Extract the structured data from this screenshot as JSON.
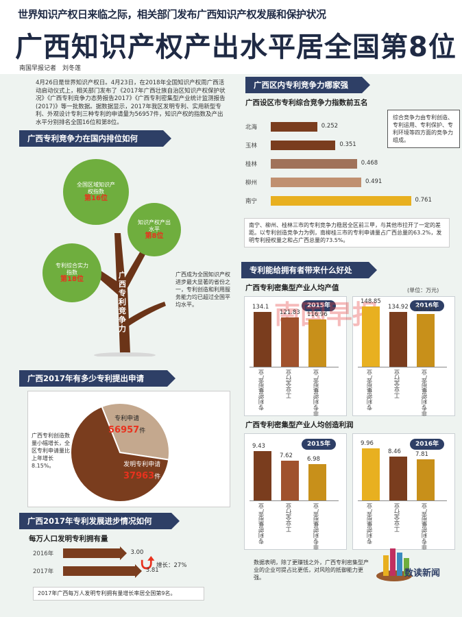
{
  "header": {
    "kicker": "世界知识产权日来临之际，相关部门发布广西知识产权发展和保护状况",
    "headline": "广西知识产权产出水平居全国第8位",
    "byline": "南国早报记者　刘冬莲"
  },
  "intro": "4月26日是世界知识产权日。4月23日，在2018年全国知识产权周广西活动启动仪式上，相关部门发布了《2017年广西壮族自治区知识产权保护状况》《广西专利竞争力态势报告2017》《广西专利密集型产业统计监测报告(2017)》等一批数据。据数据显示，2017年我区发明专利、实用新型专利、外观设计专利三种专利的申请量为56957件，知识产权的指数及产出水平分别排名全国16位和第8位。",
  "tree_section": {
    "banner": "广西专利竞争力在国内排位如何",
    "trunk_label": "广西专利竞争力",
    "bubbles": [
      {
        "label": "全国区域知识产权指数",
        "rank": "第16位"
      },
      {
        "label": "知识产权产出水平",
        "rank": "第8位"
      },
      {
        "label": "专利综合实力指数",
        "rank": "第18位"
      }
    ],
    "note": "广西成为全国知识产权进步最大显著的省份之一，专利创造和利用服务能力均已超过全国平均水平。"
  },
  "city_section": {
    "banner": "广西区内专利竞争力哪家强",
    "subtitle": "广西设区市专利综合竞争力指数前五名",
    "note": "综合竞争力由专利创造、专利运用、专利保护、专利环境等四方面的竞争力组成。",
    "summary": "南宁、柳州、桂林三市的专利竞争力稳居全区前三甲，与其他市拉开了一定的差距。以专利创造竞争力为例，南柳桂三市的专利申请量占广西总量的63.2%，发明专利授权量之和占广西总量的73.5%。"
  },
  "applications_section": {
    "banner": "广西2017年有多少专利提出申请",
    "total_label": "专利申请",
    "total_value": "56957",
    "invent_label": "发明专利申请",
    "invent_value": "37963",
    "unit": "件",
    "note": "广西专利创造数量小幅增长，全区专利申请量比上年增长8.15%。"
  },
  "progress_section": {
    "banner": "广西2017年专利发展进步情况如何",
    "subtitle": "每万人口发明专利拥有量",
    "growth_label": "增长：27%",
    "footnote": "2017年广西每万人发明专利拥有量增长率居全国第9名。"
  },
  "benefit_section": {
    "banner": "专利能给拥有者带来什么好处",
    "chart1_title": "广西专利密集型产业人均产值",
    "chart1_unit": "(单位：万元)",
    "chart2_title": "广西专利密集型产业人均创造利润",
    "year_a": "2015年",
    "year_b": "2016年",
    "conclusion": "数据表明，除了更赚钱之外，广西专利密集型产业的企业可提占比更低，对风险的抵御能力更强。",
    "brand": "数读新闻",
    "watermark": "南国早报"
  },
  "chart_data": [
    {
      "type": "bar",
      "orientation": "horizontal",
      "title": "广西设区市专利综合竞争力指数前五名",
      "categories": [
        "北海",
        "玉林",
        "桂林",
        "柳州",
        "南宁"
      ],
      "values": [
        0.252,
        0.351,
        0.468,
        0.491,
        0.761
      ],
      "colors": [
        "#7a3d1e",
        "#7a3d1e",
        "#a0725a",
        "#c09070",
        "#e8b020"
      ]
    },
    {
      "type": "bar",
      "title": "广西专利密集型产业人均产值",
      "ylabel": "(单位：万元)",
      "categories": [
        "专利密集型产业",
        "工业全行业",
        "非专利密集型产业"
      ],
      "series": [
        {
          "name": "2015年",
          "values": [
            134.1,
            121.83,
            116.96
          ]
        },
        {
          "name": "2016年",
          "values": [
            148.85,
            134.92,
            130.21
          ]
        }
      ]
    },
    {
      "type": "bar",
      "title": "广西专利密集型产业人均创造利润",
      "categories": [
        "专利密集型产业",
        "工业全行业",
        "非专利密集型产业"
      ],
      "series": [
        {
          "name": "2015年",
          "values": [
            9.43,
            7.62,
            6.98
          ]
        },
        {
          "name": "2016年",
          "values": [
            9.96,
            8.46,
            7.81
          ]
        }
      ]
    },
    {
      "type": "pie",
      "title": "",
      "categories": [
        "专利申请",
        "发明专利申请"
      ],
      "values": [
        18994,
        37963
      ],
      "colors": [
        "#c4a88e",
        "#7a3d1e"
      ]
    },
    {
      "type": "bar",
      "orientation": "horizontal",
      "title": "每万人口发明专利拥有量",
      "categories": [
        "2016年",
        "2017年"
      ],
      "values": [
        3.0,
        3.81
      ]
    }
  ]
}
